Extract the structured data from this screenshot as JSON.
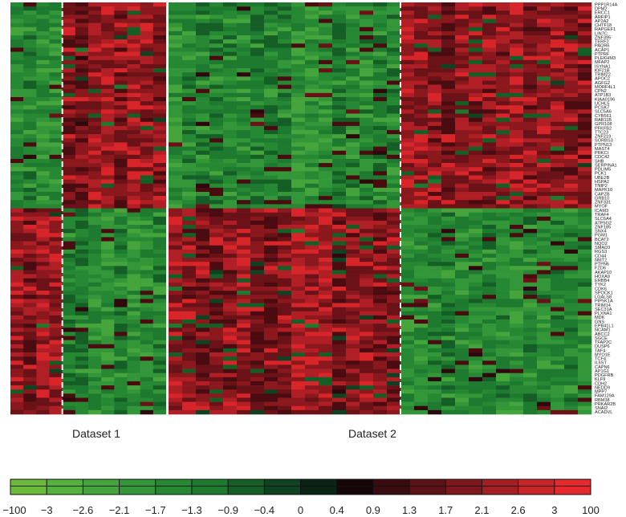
{
  "chart_data": {
    "type": "heatmap",
    "datasets": [
      {
        "name": "Dataset 1",
        "columns": 12
      },
      {
        "name": "Dataset 2",
        "columns": 31
      }
    ],
    "group_split_columns": [
      4,
      17
    ],
    "rows": 100,
    "row_groups": [
      {
        "name": "upper",
        "rows": 50
      },
      {
        "name": "lower",
        "rows": 50
      }
    ],
    "pattern": {
      "upper": {
        "Dataset 1": [
          "down",
          "up"
        ],
        "Dataset 2": [
          "down",
          "up"
        ]
      },
      "lower": {
        "Dataset 1": [
          "up",
          "down"
        ],
        "Dataset 2": [
          "up",
          "down"
        ]
      }
    },
    "row_labels": [
      "PPP1R14A",
      "DPM2",
      "ERCC1",
      "ARFIP1",
      "AP2A2",
      "CHTF18",
      "RAPGEF1",
      "LIN7C",
      "ZNF395",
      "TERF2",
      "PAQR6",
      "ACAP1",
      "PTPRF",
      "PLEKHM3",
      "MFAP2",
      "ISYNA1",
      "KIF21B",
      "TRIM22",
      "APOC2",
      "AGFG2",
      "MORF4L1",
      "CPN2",
      "ATP1B3",
      "KIAA0196",
      "UCHL5",
      "PCSK7",
      "SLC5A6",
      "CYB561",
      "RAB11B",
      "GPR108",
      "PFKFB2",
      "TTC23",
      "ZNF219",
      "SORBS3",
      "PTPN13",
      "MAST4",
      "PRKCI",
      "CDC42",
      "SHB",
      "SERPINA1",
      "PDLIM5",
      "PCK1",
      "UBE2B",
      "HSPA2",
      "TNIP2",
      "MAPK10",
      "CAPZB",
      "GRB10",
      "ZNF331",
      "MYOF",
      "ICAM3",
      "TRAF4",
      "SLC6A4",
      "ATP5G2",
      "ZNF185",
      "SNX4",
      "PGM1",
      "BCAT2",
      "NQO2",
      "SMAD3",
      "RGS3",
      "CD44",
      "NMT2",
      "PTPN6",
      "FZD6",
      "AKAP10",
      "HOXA9",
      "ERBB4",
      "TYK2",
      "CDK6",
      "SPOCK1",
      "LGALS8",
      "PIP5K1A",
      "TRIM14",
      "SEC31A",
      "PLXNA1",
      "MDK",
      "GNS",
      "EPB41L1",
      "NCAM1",
      "ABCC2",
      "SGCE",
      "TFAP2C",
      "DUSP6",
      "TAF4",
      "MYO1E",
      "TCF4",
      "IL6ST",
      "CAPN6",
      "AP1G1",
      "PDGFRB",
      "KLF9",
      "CDH2",
      "NEDD9",
      "MPP7",
      "FAM129A",
      "RBM38",
      "PRKAR2B",
      "SNAI2",
      "ACADVL"
    ],
    "colorbar": {
      "colors": [
        "#6bb938",
        "#55b13d",
        "#45a43c",
        "#339638",
        "#268833",
        "#1d7a2f",
        "#155f27",
        "#0f4220",
        "#0a2414",
        "#160608",
        "#3a0c0f",
        "#5c1216",
        "#7e181d",
        "#a51e24",
        "#c92428",
        "#e6292c"
      ],
      "tick_labels": [
        "−100",
        "−3",
        "−2.6",
        "−2.1",
        "−1.7",
        "−1.3",
        "−0.9",
        "−0.4",
        "0",
        "0.4",
        "0.9",
        "1.3",
        "1.7",
        "2.1",
        "2.6",
        "3",
        "100"
      ],
      "range": [
        -100,
        100
      ]
    },
    "title": "",
    "xlabel": "",
    "ylabel": ""
  }
}
